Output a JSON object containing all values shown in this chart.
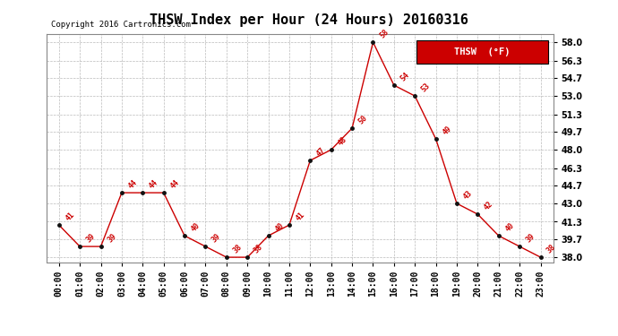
{
  "title": "THSW Index per Hour (24 Hours) 20160316",
  "copyright": "Copyright 2016 Cartronics.com",
  "legend_text": "THSW  (°F)",
  "hours": [
    0,
    1,
    2,
    3,
    4,
    5,
    6,
    7,
    8,
    9,
    10,
    11,
    12,
    13,
    14,
    15,
    16,
    17,
    18,
    19,
    20,
    21,
    22,
    23
  ],
  "values": [
    41,
    39,
    39,
    44,
    44,
    44,
    40,
    39,
    38,
    38,
    40,
    41,
    47,
    48,
    50,
    58,
    54,
    53,
    49,
    43,
    42,
    40,
    39,
    38
  ],
  "yticks": [
    38.0,
    39.7,
    41.3,
    43.0,
    44.7,
    46.3,
    48.0,
    49.7,
    51.3,
    53.0,
    54.7,
    56.3,
    58.0
  ],
  "ylim": [
    37.55,
    58.8
  ],
  "xlim": [
    -0.6,
    23.6
  ],
  "line_color": "#cc0000",
  "marker_color": "#111111",
  "label_color": "#cc0000",
  "bg_color": "#ffffff",
  "grid_color": "#bbbbbb",
  "legend_bg": "#cc0000",
  "title_fontsize": 11,
  "copyright_fontsize": 6.5,
  "label_fontsize": 6,
  "tick_fontsize": 7,
  "legend_fontsize": 7.5
}
